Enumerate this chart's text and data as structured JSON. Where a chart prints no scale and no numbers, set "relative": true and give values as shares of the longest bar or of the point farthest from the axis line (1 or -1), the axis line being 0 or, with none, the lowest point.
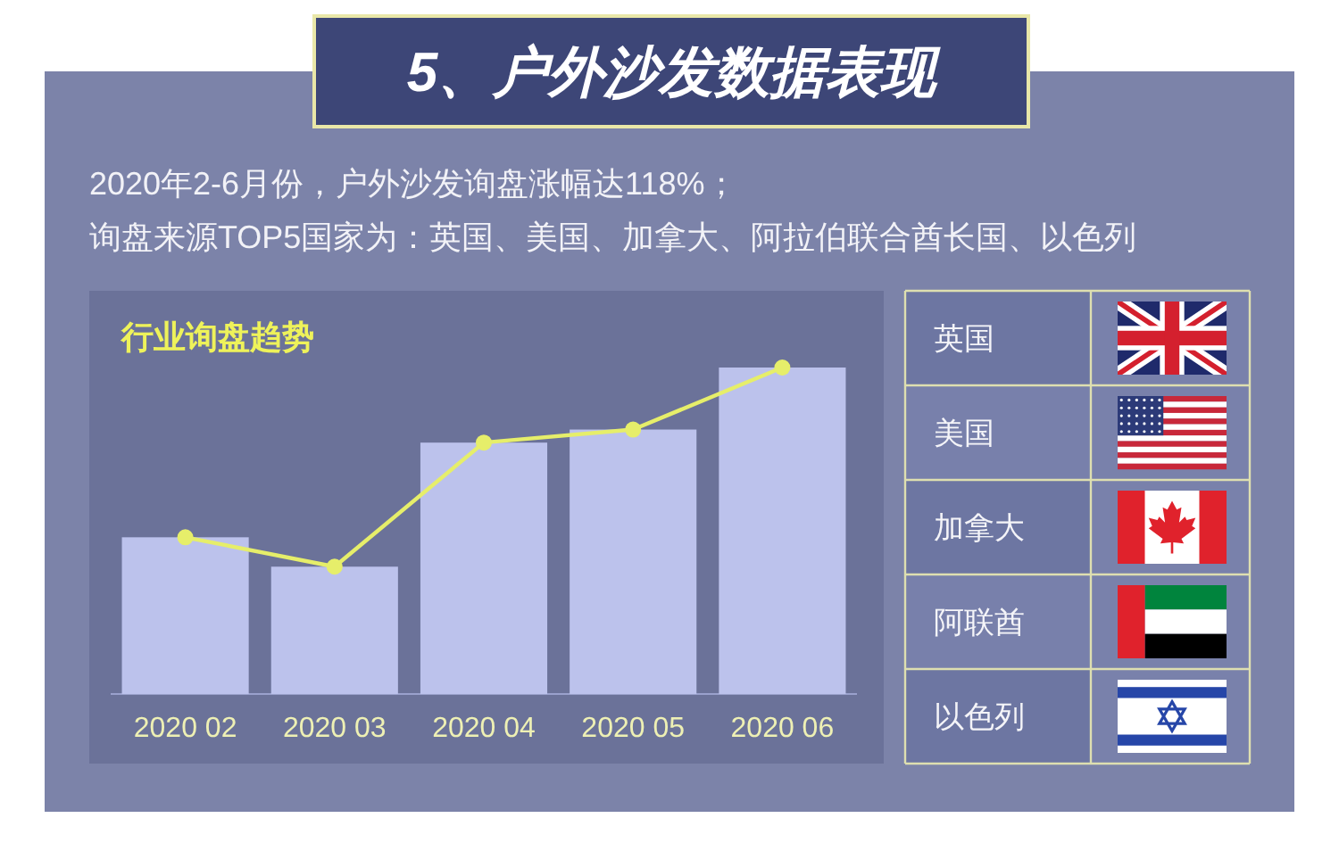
{
  "chart_data": [
    {
      "type": "bar",
      "title": "行业询盘趋势",
      "annotations": [
        "5、户外沙发数据表现",
        "2020年2-6月份，户外沙发询盘涨幅达118%；",
        "询盘来源TOP5国家为：英国、美国、加拿大、阿拉伯联合酋长国、以色列"
      ],
      "categories": [
        "2020 02",
        "2020 03",
        "2020 04",
        "2020 05",
        "2020 06"
      ],
      "relative": true,
      "marker": "circle",
      "series": [
        {
          "type": "bar",
          "color": "#bcc2ec",
          "values": [
            0.48,
            0.39,
            0.77,
            0.81,
            1
          ]
        },
        {
          "type": "line",
          "color": "#e6ee6a",
          "values": [
            0.48,
            0.39,
            0.77,
            0.81,
            1
          ]
        }
      ]
    },
    {
      "type": "other",
      "annotations": [
        "英国",
        "美国",
        "加拿大",
        "阿联酋",
        "以色列"
      ]
    }
  ]
}
